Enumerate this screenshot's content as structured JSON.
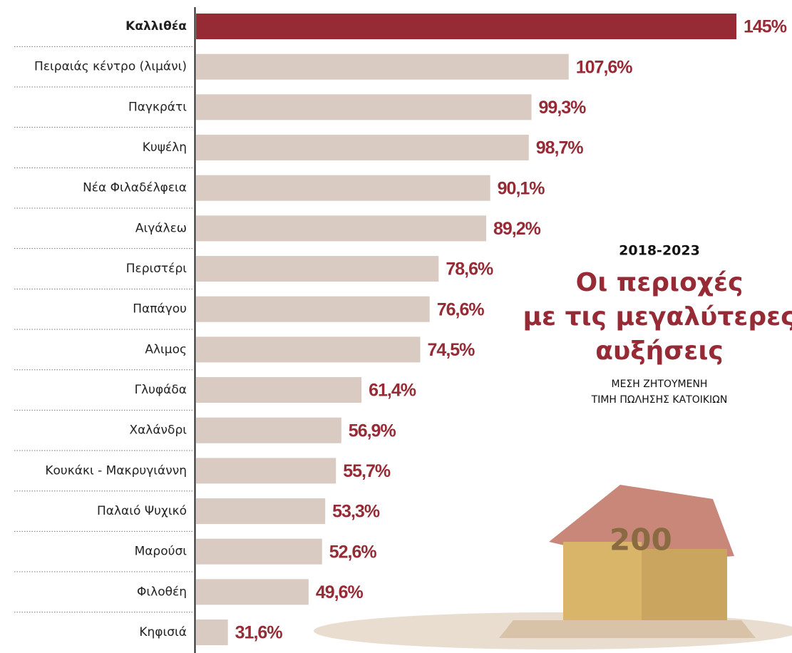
{
  "chart_data": {
    "type": "hbar",
    "kicker": "2018-2023",
    "title": [
      "Οι περιοχές",
      "με τις μεγαλύτερες",
      "αυξήσεις"
    ],
    "subtitle": [
      "ΜΕΣΗ ΖΗΤΟΥΜΕΝΗ",
      "ΤΙΜΗ ΠΩΛΗΣΗΣ ΚΑΤΟΙΚΙΩΝ"
    ],
    "categories": [
      "Καλλιθέα",
      "Πειραιάς κέντρο (λιμάνι)",
      "Παγκράτι",
      "Κυψέλη",
      "Νέα Φιλαδέλφεια",
      "Αιγάλεω",
      "Περιστέρι",
      "Παπάγου",
      "Αλιμος",
      "Γλυφάδα",
      "Χαλάνδρι",
      "Κουκάκι - Μακρυγιάννη",
      "Παλαιό Ψυχικό",
      "Μαρούσι",
      "Φιλοθέη",
      "Κηφισιά"
    ],
    "values": [
      145,
      107.6,
      99.3,
      98.7,
      90.1,
      89.2,
      78.6,
      76.6,
      74.5,
      61.4,
      56.9,
      55.7,
      53.3,
      52.6,
      49.6,
      31.6
    ],
    "value_labels": [
      "145%",
      "107,6%",
      "99,3%",
      "98,7%",
      "90,1%",
      "89,2%",
      "78,6%",
      "76,6%",
      "74,5%",
      "61,4%",
      "56,9%",
      "55,7%",
      "53,3%",
      "52,6%",
      "49,6%",
      "31,6%"
    ],
    "colors": [
      "#962b35",
      "#d9cbc1",
      "#d9cbc1",
      "#d9cbc1",
      "#d9cbc1",
      "#d9cbc1",
      "#d9cbc1",
      "#d9cbc1",
      "#d9cbc1",
      "#d9cbc1",
      "#d9cbc1",
      "#d9cbc1",
      "#d9cbc1",
      "#d9cbc1",
      "#d9cbc1",
      "#d9cbc1"
    ],
    "label_color": "#962b35",
    "xlim": [
      24.5,
      145
    ]
  }
}
